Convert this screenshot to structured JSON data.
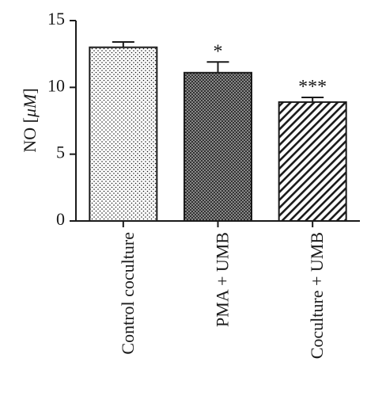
{
  "chart_data": {
    "type": "bar",
    "ylabel_prefix": "NO [",
    "ylabel_unit": "μM",
    "ylabel_suffix": "]",
    "ylim": [
      0,
      15
    ],
    "yticks": [
      "0",
      "5",
      "10",
      "15"
    ],
    "categories": [
      "Control coculture",
      "PMA + UMB",
      "Coculture + UMB"
    ],
    "values": [
      13.0,
      11.1,
      8.9
    ],
    "errors": [
      0.4,
      0.8,
      0.35
    ],
    "significance": [
      "",
      "*",
      "***"
    ],
    "fill_patterns": [
      "dots",
      "crosshatch",
      "diagonal-stripes"
    ],
    "grid": false,
    "colors": {
      "ink": "#1a1a1a",
      "background": "#ffffff"
    }
  }
}
